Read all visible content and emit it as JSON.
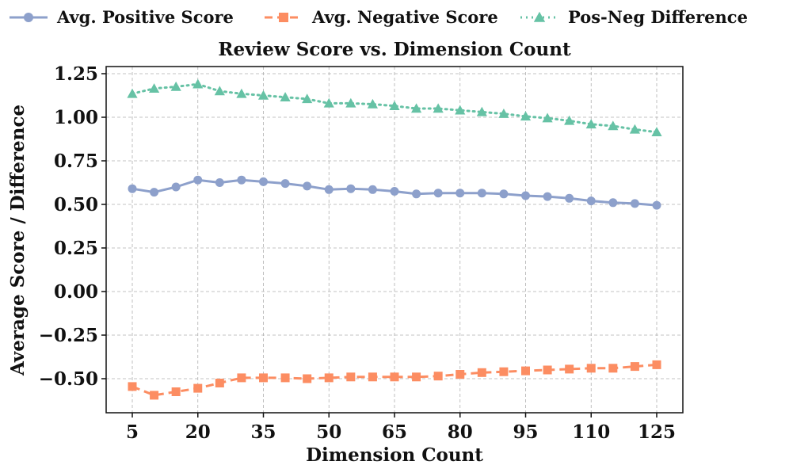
{
  "chart_data": {
    "type": "line",
    "title": "Review Score vs. Dimension Count",
    "xlabel": "Dimension Count",
    "ylabel": "Average Score / Difference",
    "xlim": [
      0,
      130
    ],
    "ylim": [
      -0.7,
      1.25
    ],
    "grid": true,
    "legend_position": "top",
    "x": [
      5,
      10,
      15,
      20,
      25,
      30,
      35,
      40,
      45,
      50,
      55,
      60,
      65,
      70,
      75,
      80,
      85,
      90,
      95,
      100,
      105,
      110,
      115,
      120,
      125
    ],
    "x_ticks": [
      5,
      20,
      35,
      50,
      65,
      80,
      95,
      110,
      125
    ],
    "x_tick_labels": [
      "5",
      "20",
      "35",
      "50",
      "65",
      "80",
      "95",
      "110",
      "125"
    ],
    "y_ticks": [
      -0.5,
      -0.25,
      0.0,
      0.25,
      0.5,
      0.75,
      1.0,
      1.25
    ],
    "y_tick_labels": [
      "−0.50",
      "−0.25",
      "0.00",
      "0.25",
      "0.50",
      "0.75",
      "1.00",
      "1.25"
    ],
    "series": [
      {
        "name": "Avg. Positive Score",
        "color": "#8da0cb",
        "marker": "circle",
        "line_style": "solid",
        "values": [
          0.59,
          0.57,
          0.6,
          0.64,
          0.625,
          0.64,
          0.63,
          0.62,
          0.605,
          0.585,
          0.59,
          0.585,
          0.575,
          0.56,
          0.565,
          0.565,
          0.565,
          0.56,
          0.55,
          0.545,
          0.535,
          0.52,
          0.51,
          0.505,
          0.495
        ]
      },
      {
        "name": "Avg. Negative Score",
        "color": "#fc8d62",
        "marker": "square",
        "line_style": "dashed",
        "values": [
          -0.545,
          -0.595,
          -0.575,
          -0.555,
          -0.525,
          -0.495,
          -0.495,
          -0.495,
          -0.5,
          -0.495,
          -0.49,
          -0.49,
          -0.49,
          -0.49,
          -0.485,
          -0.475,
          -0.465,
          -0.46,
          -0.455,
          -0.45,
          -0.445,
          -0.44,
          -0.44,
          -0.43,
          -0.42
        ]
      },
      {
        "name": "Pos-Neg Difference",
        "color": "#66c2a5",
        "marker": "triangle",
        "line_style": "dotted",
        "values": [
          1.135,
          1.165,
          1.175,
          1.19,
          1.15,
          1.135,
          1.125,
          1.115,
          1.105,
          1.08,
          1.08,
          1.075,
          1.065,
          1.05,
          1.05,
          1.04,
          1.03,
          1.02,
          1.005,
          0.995,
          0.98,
          0.96,
          0.95,
          0.93,
          0.915
        ]
      }
    ]
  }
}
